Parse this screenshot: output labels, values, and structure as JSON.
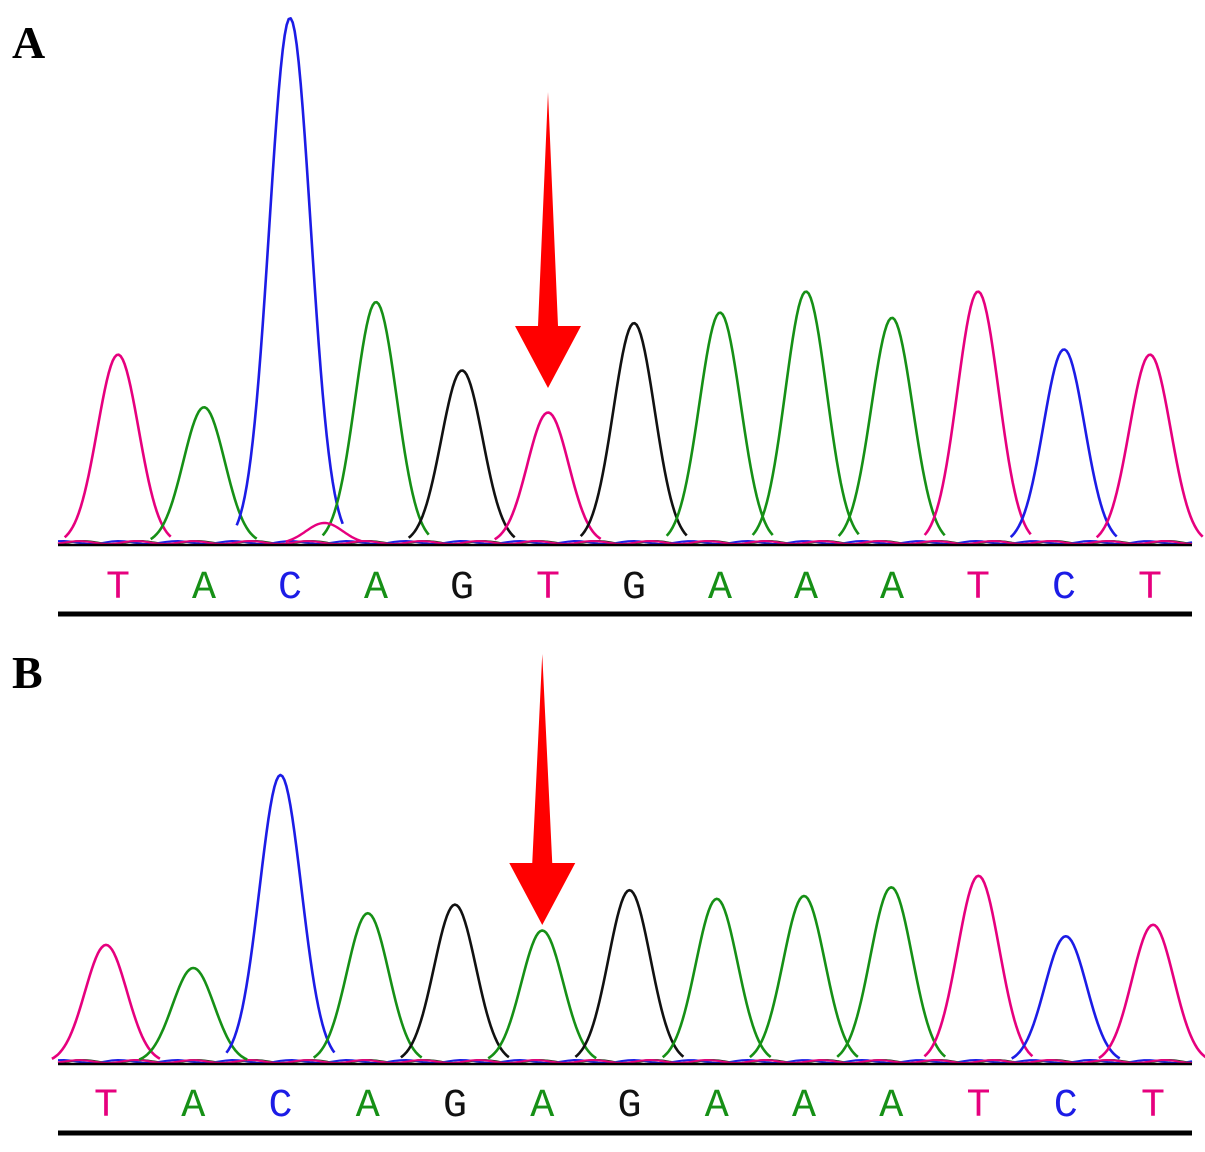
{
  "colors": {
    "T": "#e6007e",
    "A": "#169016",
    "C": "#1c1ce6",
    "G": "#111111",
    "arrow": "#ff0000",
    "baseline": "#000000"
  },
  "chart_data": [
    {
      "type": "line",
      "panel_label": "A",
      "title": "",
      "xlabel": "",
      "ylabel": "",
      "sequence": [
        "T",
        "A",
        "C",
        "A",
        "G",
        "T",
        "G",
        "A",
        "A",
        "A",
        "T",
        "C",
        "T"
      ],
      "peak_heights": [
        0.36,
        0.26,
        1.0,
        0.46,
        0.33,
        0.25,
        0.42,
        0.44,
        0.48,
        0.43,
        0.48,
        0.37,
        0.36
      ],
      "minor_peaks": [
        {
          "index": 2,
          "base": "T",
          "height": 0.04
        }
      ],
      "highlight_index": 5,
      "annotation": "red downward arrow marking variant position"
    },
    {
      "type": "line",
      "panel_label": "B",
      "title": "",
      "xlabel": "",
      "ylabel": "",
      "sequence": [
        "T",
        "A",
        "C",
        "A",
        "G",
        "A",
        "G",
        "A",
        "A",
        "A",
        "T",
        "C",
        "T"
      ],
      "peak_heights": [
        0.41,
        0.33,
        1.0,
        0.52,
        0.55,
        0.46,
        0.6,
        0.57,
        0.58,
        0.61,
        0.65,
        0.44,
        0.48
      ],
      "minor_peaks": [],
      "highlight_index": 5,
      "annotation": "red downward arrow marking variant position"
    }
  ]
}
